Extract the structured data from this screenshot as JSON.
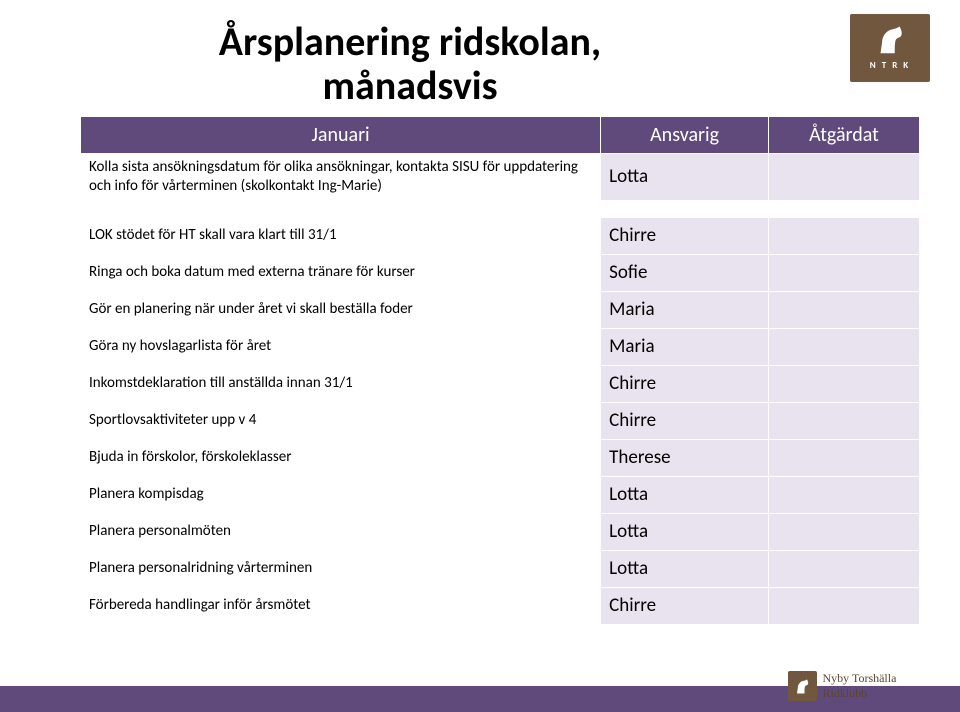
{
  "title": {
    "line1": "Årsplanering ridskolan,",
    "line2": "månadsvis"
  },
  "logo": {
    "top_text": "N T R K",
    "footer_text": "Nyby Torshälla Ridklubb"
  },
  "columns": {
    "month": "Januari",
    "responsible": "Ansvarig",
    "done": "Åtgärdat"
  },
  "rows_block1": [
    {
      "task": "Kolla sista ansökningsdatum för olika ansökningar, kontakta SISU för uppdatering och info för vårterminen (skolkontakt Ing-Marie)",
      "responsible": "Lotta",
      "done": ""
    }
  ],
  "rows_block2": [
    {
      "task": "LOK stödet för HT skall vara klart till 31/1",
      "responsible": "Chirre",
      "done": ""
    },
    {
      "task": "Ringa och boka datum med externa tränare för kurser",
      "responsible": "Sofie",
      "done": ""
    },
    {
      "task": "Gör en planering när under året vi skall beställa foder",
      "responsible": "Maria",
      "done": ""
    },
    {
      "task": "Göra ny hovslagarlista för året",
      "responsible": "Maria",
      "done": ""
    },
    {
      "task": "Inkomstdeklaration till anställda innan 31/1",
      "responsible": "Chirre",
      "done": ""
    },
    {
      "task": "Sportlovsaktiviteter upp v 4",
      "responsible": "Chirre",
      "done": ""
    },
    {
      "task": "Bjuda in förskolor, förskoleklasser",
      "responsible": "Therese",
      "done": ""
    },
    {
      "task": "Planera kompisdag",
      "responsible": "Lotta",
      "done": ""
    },
    {
      "task": "Planera personalmöten",
      "responsible": "Lotta",
      "done": ""
    },
    {
      "task": "Planera personalridning vårterminen",
      "responsible": "Lotta",
      "done": ""
    },
    {
      "task": "Förbereda handlingar inför årsmötet",
      "responsible": "Chirre",
      "done": ""
    }
  ],
  "colors": {
    "header_bg": "#604a7b",
    "cell_bg": "#e9e3ef",
    "logo_bg": "#70573e"
  }
}
